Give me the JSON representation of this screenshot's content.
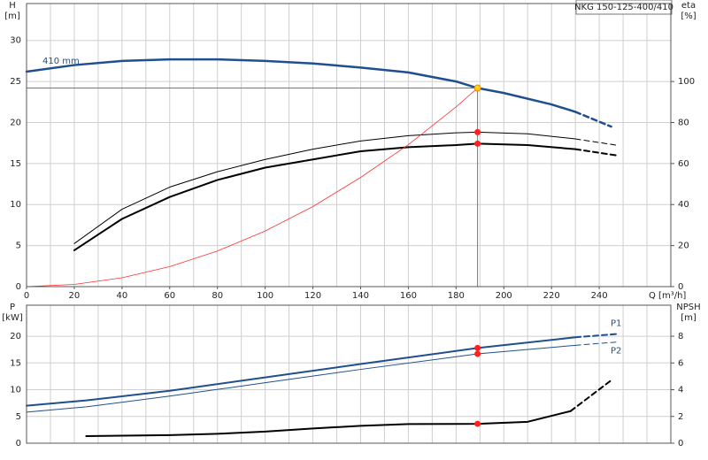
{
  "chart_data": [
    {
      "type": "line",
      "title": "NKG 150-125-400/410",
      "x_label": "Q [m³/h]",
      "y_label": [
        "H",
        "[m]"
      ],
      "y2_label": [
        "eta",
        "[%]"
      ],
      "xlim": [
        0,
        270
      ],
      "xticks": [
        0,
        20,
        40,
        60,
        80,
        100,
        120,
        140,
        160,
        180,
        200,
        220,
        240
      ],
      "x_grid": [
        10,
        20,
        30,
        40,
        50,
        60,
        70,
        80,
        90,
        100,
        110,
        120,
        130,
        140,
        150,
        160,
        170,
        180,
        190,
        200,
        210,
        220,
        230,
        240,
        250,
        260
      ],
      "ylim": [
        0,
        34.5
      ],
      "yticks": [
        0,
        5,
        10,
        15,
        20,
        25,
        30
      ],
      "y2lim": [
        0,
        138
      ],
      "y2ticks": [
        0,
        20,
        40,
        60,
        80,
        100
      ],
      "series": [
        {
          "name": "410 mm",
          "name_position": "start-above",
          "color": "#1f4f8f",
          "width": 2.5,
          "dashed_after": 230,
          "x": [
            0,
            20,
            40,
            60,
            80,
            100,
            120,
            140,
            160,
            180,
            189,
            200,
            220,
            230,
            245
          ],
          "values": [
            26.2,
            27.0,
            27.5,
            27.7,
            27.7,
            27.5,
            27.2,
            26.7,
            26.1,
            25.0,
            24.2,
            23.6,
            22.2,
            21.3,
            19.5
          ]
        },
        {
          "axis": "y2",
          "color": "#000000",
          "width": 1,
          "dashed_after": 230,
          "x": [
            20,
            40,
            60,
            80,
            100,
            120,
            140,
            160,
            180,
            189,
            210,
            230,
            247
          ],
          "values": [
            21,
            37.7,
            48.5,
            56,
            62,
            67,
            71,
            73.6,
            75,
            75.3,
            74.5,
            72,
            69
          ]
        },
        {
          "axis": "y2",
          "color": "#000000",
          "width": 2,
          "dashed_after": 230,
          "x": [
            20,
            40,
            60,
            80,
            100,
            120,
            140,
            160,
            180,
            189,
            210,
            230,
            247
          ],
          "values": [
            17.7,
            33,
            43.7,
            52,
            58,
            62,
            66,
            68,
            69,
            69.7,
            69,
            67,
            64
          ]
        },
        {
          "color": "#ff3030",
          "width": 0.8,
          "x": [
            0,
            20,
            40,
            60,
            80,
            100,
            120,
            140,
            160,
            180,
            189
          ],
          "values": [
            0,
            0.27,
            1.08,
            2.44,
            4.34,
            6.78,
            9.76,
            13.3,
            17.3,
            21.9,
            24.2
          ]
        }
      ],
      "markers": [
        {
          "x": 189,
          "y": 24.2,
          "color": "#ffd21f",
          "guide": true
        },
        {
          "x": 189,
          "y": 75.3,
          "axis": "y2",
          "color": "#ff2020"
        },
        {
          "x": 189,
          "y": 69.7,
          "axis": "y2",
          "color": "#ff2020"
        }
      ]
    },
    {
      "type": "line",
      "y_label": [
        "P",
        "[kW]"
      ],
      "y2_label": [
        "NPSH",
        "[m]"
      ],
      "xlim": [
        0,
        270
      ],
      "x_grid": [
        10,
        20,
        30,
        40,
        50,
        60,
        70,
        80,
        90,
        100,
        110,
        120,
        130,
        140,
        150,
        160,
        170,
        180,
        190,
        200,
        210,
        220,
        230,
        240,
        250,
        260
      ],
      "ylim": [
        0,
        25.8
      ],
      "yticks": [
        0,
        5,
        10,
        15,
        20
      ],
      "y2lim": [
        0,
        10.32
      ],
      "y2ticks": [
        0,
        2,
        4,
        6,
        8
      ],
      "series": [
        {
          "name": "P1",
          "name_position": "end-above",
          "color": "#1f4f8f",
          "width": 2,
          "dashed_after": 230,
          "x": [
            0,
            25,
            60,
            100,
            140,
            189,
            230,
            247
          ],
          "values": [
            7.0,
            8.0,
            9.8,
            12.3,
            14.8,
            17.8,
            19.8,
            20.4
          ]
        },
        {
          "name": "P2",
          "name_position": "end-below",
          "color": "#1f4f8f",
          "width": 1,
          "dashed_after": 230,
          "x": [
            0,
            25,
            60,
            100,
            140,
            189,
            230,
            247
          ],
          "values": [
            5.8,
            6.8,
            8.8,
            11.3,
            13.8,
            16.7,
            18.3,
            18.9
          ]
        },
        {
          "axis": "y2",
          "color": "#000000",
          "width": 2,
          "dashed_after": 228,
          "x": [
            25,
            60,
            80,
            100,
            120,
            140,
            160,
            189,
            210,
            228,
            245
          ],
          "values": [
            0.53,
            0.6,
            0.7,
            0.87,
            1.1,
            1.3,
            1.43,
            1.45,
            1.6,
            2.4,
            4.7
          ]
        }
      ],
      "markers": [
        {
          "x": 189,
          "y": 17.8,
          "color": "#ff2020"
        },
        {
          "x": 189,
          "y": 16.7,
          "color": "#ff2020"
        },
        {
          "x": 189,
          "y": 1.45,
          "axis": "y2",
          "color": "#ff2020"
        }
      ]
    }
  ]
}
